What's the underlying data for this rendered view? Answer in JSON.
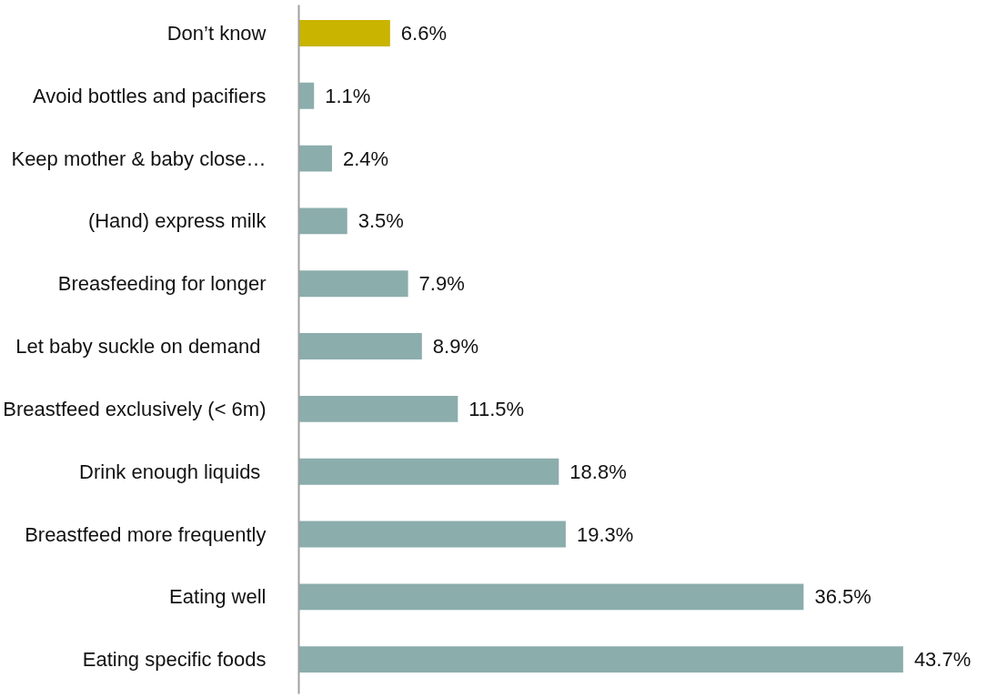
{
  "chart_data": {
    "type": "bar",
    "orientation": "horizontal",
    "categories": [
      "Don’t know",
      "Avoid bottles and pacifiers",
      "Keep mother & baby close…",
      "(Hand) express milk",
      "Breasfeeding for longer",
      "Let  baby suckle on demand",
      "Breastfeed exclusively (< 6m)",
      "Drink enough liquids ",
      "Breastfeed more frequently",
      "Eating well",
      "Eating specific foods"
    ],
    "values": [
      6.6,
      1.1,
      2.4,
      3.5,
      7.9,
      8.9,
      11.5,
      18.8,
      19.3,
      36.5,
      43.7
    ],
    "value_labels": [
      "6.6%",
      "1.1%",
      "2.4%",
      "3.5%",
      "7.9%",
      "8.9%",
      "11.5%",
      "18.8%",
      "19.3%",
      "36.5%",
      "43.7%"
    ],
    "colors": [
      "#c9b400",
      "#8badac",
      "#8badac",
      "#8badac",
      "#8badac",
      "#8badac",
      "#8badac",
      "#8badac",
      "#8badac",
      "#8badac",
      "#8badac"
    ]
  }
}
